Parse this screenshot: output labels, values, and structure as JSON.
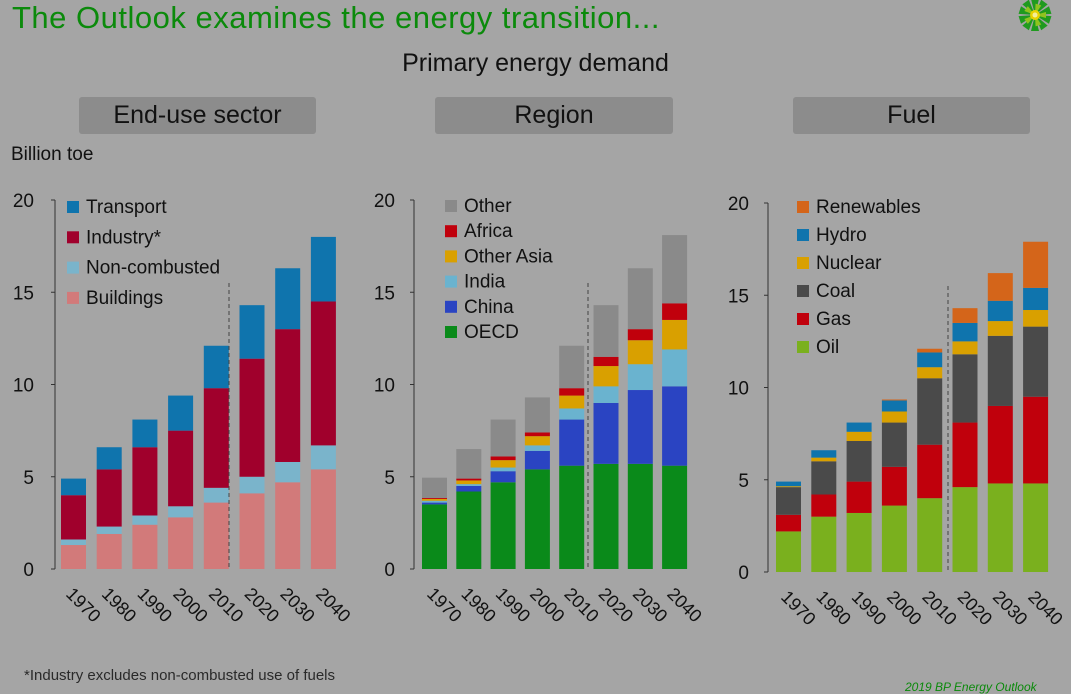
{
  "title": "The Outlook examines the energy transition...",
  "subtitle": "Primary energy demand",
  "unit_label": "Billion toe",
  "footnote": "*Industry excludes non-combusted use of fuels",
  "copyright": "2019 BP Energy Outlook",
  "chart_data": [
    {
      "type": "stacked-bar",
      "panel_title": "End-use sector",
      "categories": [
        "1970",
        "1980",
        "1990",
        "2000",
        "2010",
        "2020",
        "2030",
        "2040"
      ],
      "ylim": [
        0,
        20
      ],
      "yticks": [
        "0",
        "5",
        "10",
        "15",
        "20"
      ],
      "projection_divider_after": "2010",
      "series": [
        {
          "name": "Buildings",
          "color": "#d27a7a",
          "values": [
            1.3,
            1.9,
            2.4,
            2.8,
            3.6,
            4.1,
            4.7,
            5.4
          ]
        },
        {
          "name": "Non-combusted",
          "color": "#7ab4cb",
          "values": [
            0.3,
            0.4,
            0.5,
            0.6,
            0.8,
            0.9,
            1.1,
            1.3
          ]
        },
        {
          "name": "Industry*",
          "color": "#a0002c",
          "values": [
            2.4,
            3.1,
            3.7,
            4.1,
            5.4,
            6.4,
            7.2,
            7.8
          ]
        },
        {
          "name": "Transport",
          "color": "#0f74ad",
          "values": [
            0.9,
            1.2,
            1.5,
            1.9,
            2.3,
            2.9,
            3.3,
            3.5
          ]
        }
      ]
    },
    {
      "type": "stacked-bar",
      "panel_title": "Region",
      "categories": [
        "1970",
        "1980",
        "1990",
        "2000",
        "2010",
        "2020",
        "2030",
        "2040"
      ],
      "ylim": [
        0,
        20
      ],
      "yticks": [
        "0",
        "5",
        "10",
        "15",
        "20"
      ],
      "projection_divider_after": "2010",
      "series": [
        {
          "name": "OECD",
          "color": "#0a8a1a",
          "values": [
            3.5,
            4.2,
            4.7,
            5.4,
            5.6,
            5.7,
            5.7,
            5.6
          ]
        },
        {
          "name": "China",
          "color": "#2a44c2",
          "values": [
            0.1,
            0.3,
            0.6,
            1.0,
            2.5,
            3.3,
            4.0,
            4.3
          ]
        },
        {
          "name": "India",
          "color": "#6ab3cf",
          "values": [
            0.1,
            0.1,
            0.2,
            0.3,
            0.6,
            0.9,
            1.4,
            2.0
          ]
        },
        {
          "name": "Other Asia",
          "color": "#d9a000",
          "values": [
            0.1,
            0.2,
            0.4,
            0.5,
            0.7,
            1.1,
            1.3,
            1.6
          ]
        },
        {
          "name": "Africa",
          "color": "#c0000c",
          "values": [
            0.05,
            0.1,
            0.2,
            0.2,
            0.4,
            0.5,
            0.6,
            0.9
          ]
        },
        {
          "name": "Other",
          "color": "#8a8a8a",
          "values": [
            1.1,
            1.6,
            2.0,
            1.9,
            2.3,
            2.8,
            3.3,
            3.7
          ]
        }
      ]
    },
    {
      "type": "stacked-bar",
      "panel_title": "Fuel",
      "categories": [
        "1970",
        "1980",
        "1990",
        "2000",
        "2010",
        "2020",
        "2030",
        "2040"
      ],
      "ylim": [
        0,
        20
      ],
      "yticks": [
        "0",
        "5",
        "10",
        "15",
        "20"
      ],
      "projection_divider_after": "2010",
      "series": [
        {
          "name": "Oil",
          "color": "#7ab01e",
          "values": [
            2.2,
            3.0,
            3.2,
            3.6,
            4.0,
            4.6,
            4.8,
            4.8
          ]
        },
        {
          "name": "Gas",
          "color": "#c0000c",
          "values": [
            0.9,
            1.2,
            1.7,
            2.1,
            2.9,
            3.5,
            4.2,
            4.7
          ]
        },
        {
          "name": "Coal",
          "color": "#4a4a4a",
          "values": [
            1.5,
            1.8,
            2.2,
            2.4,
            3.6,
            3.7,
            3.8,
            3.8
          ]
        },
        {
          "name": "Nuclear",
          "color": "#d9a000",
          "values": [
            0.05,
            0.2,
            0.5,
            0.6,
            0.6,
            0.7,
            0.8,
            0.9
          ]
        },
        {
          "name": "Hydro",
          "color": "#0f74ad",
          "values": [
            0.25,
            0.4,
            0.5,
            0.6,
            0.8,
            1.0,
            1.1,
            1.2
          ]
        },
        {
          "name": "Renewables",
          "color": "#d4651a",
          "values": [
            0.0,
            0.0,
            0.0,
            0.05,
            0.2,
            0.8,
            1.5,
            2.5
          ]
        }
      ]
    }
  ]
}
